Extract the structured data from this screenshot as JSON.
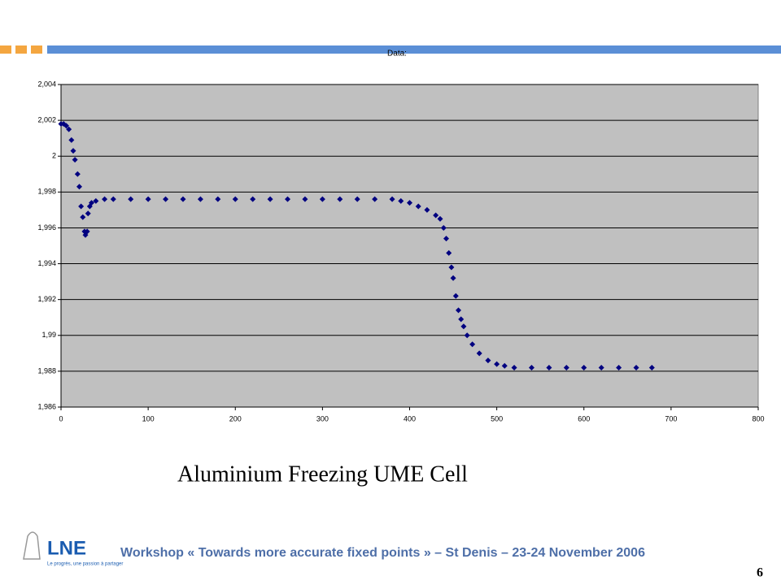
{
  "chart_data": {
    "type": "scatter",
    "title": "Data:",
    "marker": "diamond",
    "color": "#000080",
    "plot_background": "#c0c0c0",
    "grid": true,
    "x": [
      0,
      3,
      6,
      9,
      12,
      14,
      16,
      19,
      21,
      23,
      25,
      27,
      28,
      30,
      31,
      33,
      35,
      40,
      50,
      60,
      80,
      100,
      120,
      140,
      160,
      180,
      200,
      220,
      240,
      260,
      280,
      300,
      320,
      340,
      360,
      380,
      390,
      400,
      410,
      420,
      430,
      435,
      439,
      442,
      445,
      448,
      450,
      453,
      456,
      459,
      462,
      466,
      472,
      480,
      490,
      500,
      509,
      520,
      540,
      560,
      580,
      600,
      620,
      640,
      660,
      678
    ],
    "values": [
      2.0018,
      2.0018,
      2.0017,
      2.0015,
      2.0009,
      2.0003,
      1.9998,
      1.999,
      1.9983,
      1.9972,
      1.9966,
      1.9958,
      1.9956,
      1.9958,
      1.9968,
      1.9972,
      1.9974,
      1.9975,
      1.9976,
      1.9976,
      1.9976,
      1.9976,
      1.9976,
      1.9976,
      1.9976,
      1.9976,
      1.9976,
      1.9976,
      1.9976,
      1.9976,
      1.9976,
      1.9976,
      1.9976,
      1.9976,
      1.9976,
      1.9976,
      1.9975,
      1.9974,
      1.9972,
      1.997,
      1.9967,
      1.9965,
      1.996,
      1.9954,
      1.9946,
      1.9938,
      1.9932,
      1.9922,
      1.9914,
      1.9909,
      1.9905,
      1.99,
      1.9895,
      1.989,
      1.9886,
      1.9884,
      1.9883,
      1.9882,
      1.9882,
      1.9882,
      1.9882,
      1.9882,
      1.9882,
      1.9882,
      1.9882,
      1.9882
    ],
    "xlim": [
      0,
      800
    ],
    "xticks": [
      0,
      100,
      200,
      300,
      400,
      500,
      600,
      700,
      800
    ],
    "ylim": [
      1.986,
      2.004
    ],
    "yticks": [
      {
        "value": 1.986,
        "label": "1,986"
      },
      {
        "value": 1.988,
        "label": "1,988"
      },
      {
        "value": 1.99,
        "label": "1,99"
      },
      {
        "value": 1.992,
        "label": "1,992"
      },
      {
        "value": 1.994,
        "label": "1,994"
      },
      {
        "value": 1.996,
        "label": "1,996"
      },
      {
        "value": 1.998,
        "label": "1,998"
      },
      2,
      {
        "value": 2.002,
        "label": "2,002"
      },
      {
        "value": 2.004,
        "label": "2,004"
      }
    ]
  },
  "caption": "Aluminium Freezing UME Cell",
  "logo": {
    "name": "LNE",
    "tagline": "Le progrès, une passion à partager"
  },
  "footer": "Workshop « Towards more accurate fixed points » – St Denis – 23-24 November 2006",
  "page_number": "6"
}
